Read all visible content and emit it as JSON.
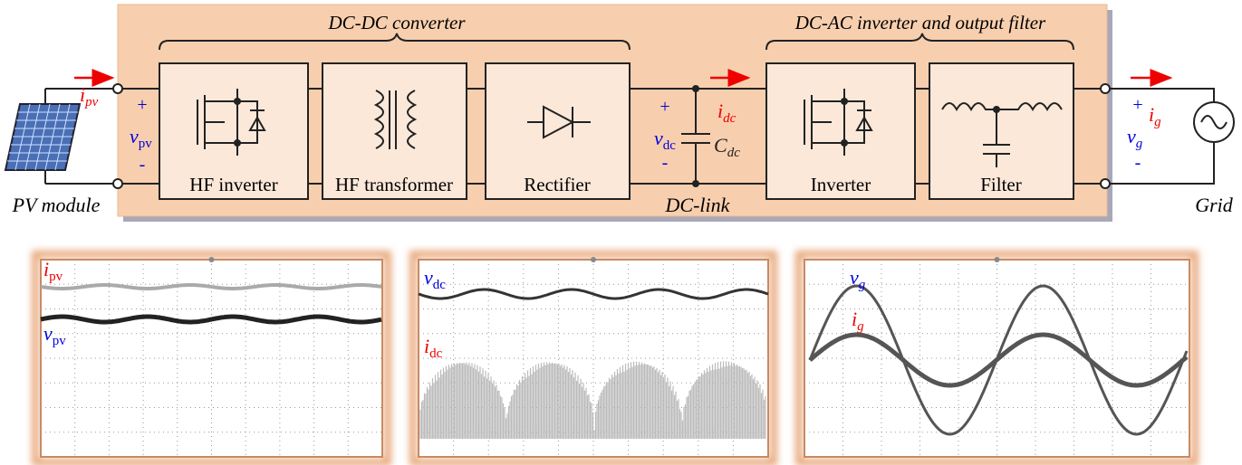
{
  "sections": {
    "dcdc": "DC-DC converter",
    "dcac": "DC-AC inverter and output filter"
  },
  "blocks": [
    "HF inverter",
    "HF transformer",
    "Rectifier",
    "Inverter",
    "Filter"
  ],
  "labels": {
    "pv_module": "PV module",
    "dc_link": "DC-link",
    "grid": "Grid"
  },
  "polarity": {
    "plus": "+",
    "minus": "-"
  },
  "symbols": {
    "i_pv": {
      "main": "i",
      "sub": "pv"
    },
    "v_pv": {
      "main": "v",
      "sub": "pv"
    },
    "v_dc": {
      "main": "v",
      "sub": "dc"
    },
    "i_dc": {
      "main": "i",
      "sub": "dc"
    },
    "C_dc": {
      "main": "C",
      "sub": "dc"
    },
    "v_g": {
      "main": "v",
      "sub": "g"
    },
    "i_g": {
      "main": "i",
      "sub": "g"
    }
  }
}
